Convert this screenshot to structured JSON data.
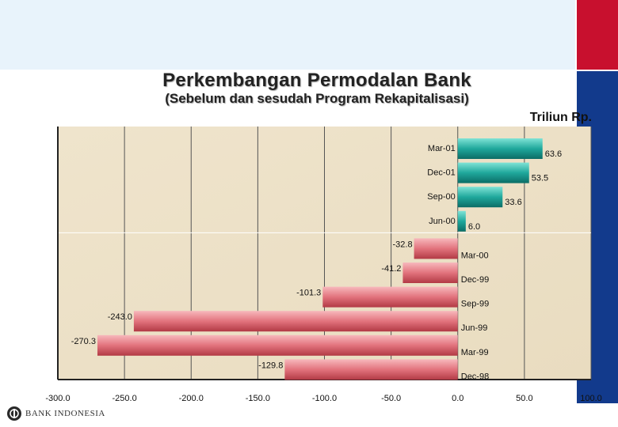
{
  "header": {
    "title": "Perkembangan Permodalan Bank",
    "subtitle": "(Sebelum dan sesudah Program Rekapitalisasi)",
    "unit": "Triliun Rp."
  },
  "footer": {
    "logo_text": "BANK INDONESIA"
  },
  "colors": {
    "positive": "#1fa89c",
    "negative": "#e2737d",
    "plot_bg": "#e9dcc0",
    "accent_red": "#c8102e",
    "accent_blue": "#123a8c"
  },
  "chart_data": {
    "type": "bar",
    "orientation": "horizontal",
    "title": "Perkembangan Permodalan Bank",
    "subtitle": "(Sebelum dan sesudah Program Rekapitalisasi)",
    "unit_label": "Triliun Rp.",
    "categories": [
      "Mar-01",
      "Dec-01",
      "Sep-00",
      "Jun-00",
      "Mar-00",
      "Dec-99",
      "Sep-99",
      "Jun-99",
      "Mar-99",
      "Dec-98"
    ],
    "values": [
      63.6,
      53.5,
      33.6,
      6.0,
      -32.8,
      -41.2,
      -101.3,
      -243.0,
      -270.3,
      -129.8
    ],
    "value_labels": [
      "63.6",
      "53.5",
      "33.6",
      "6.0",
      "-32.8",
      "-41.2",
      "-101.3",
      "-243.0",
      "-270.3",
      "-129.8"
    ],
    "xlim": [
      -300,
      100
    ],
    "x_ticks": [
      -300,
      -250,
      -200,
      -150,
      -100,
      -50,
      0,
      50,
      100
    ],
    "x_tick_labels": [
      "-300.0",
      "-250.0",
      "-200.0",
      "-150.0",
      "-100.0",
      "-50.0",
      "0.0",
      "50.0",
      "100.0"
    ],
    "grid": true,
    "legend": "none"
  }
}
